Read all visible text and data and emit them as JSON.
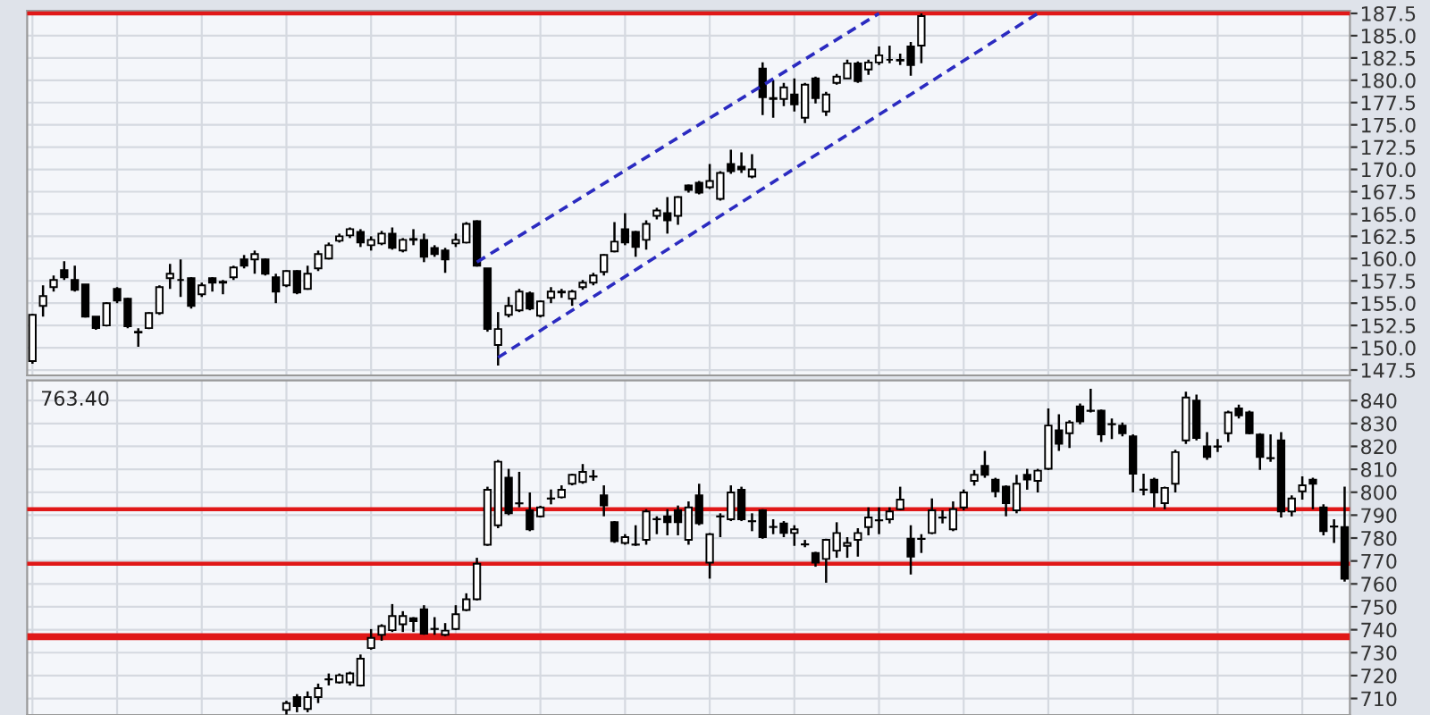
{
  "chart_data": [
    {
      "type": "candlestick",
      "categories": [
        null,
        null,
        null,
        null,
        null,
        null,
        null,
        null,
        null,
        null,
        null,
        null,
        null,
        null,
        null,
        null,
        null,
        null,
        null,
        null,
        null,
        null,
        null,
        null,
        null,
        null,
        null,
        null,
        null,
        null,
        null,
        null,
        null,
        null,
        null,
        null,
        null,
        null,
        null,
        null,
        null,
        null,
        null,
        null,
        null,
        null,
        null,
        null,
        null,
        null,
        null,
        null,
        null,
        null,
        null,
        null,
        null,
        null,
        null,
        null,
        null,
        null,
        null,
        null,
        null,
        null,
        null,
        null,
        null,
        null,
        null,
        null,
        null,
        null,
        null,
        null,
        null,
        null,
        null,
        null,
        null,
        null,
        null,
        null,
        null,
        null,
        null,
        null,
        null,
        null,
        null,
        null,
        null,
        null,
        null,
        null,
        null,
        null,
        null,
        null,
        null,
        null,
        null,
        null,
        null,
        null,
        null,
        null,
        null,
        null,
        null,
        null,
        null,
        null,
        null,
        null,
        null,
        null,
        null,
        null,
        null,
        null,
        null,
        null,
        null
      ],
      "ohlc": [
        [
          148.5,
          153.8,
          148.2,
          153.7
        ],
        [
          154.7,
          157.0,
          153.5,
          155.8
        ],
        [
          156.8,
          158.1,
          156.3,
          157.6
        ],
        [
          158.7,
          159.7,
          157.6,
          157.9
        ],
        [
          157.6,
          159.2,
          156.3,
          156.5
        ],
        [
          157.1,
          157.1,
          153.4,
          153.5
        ],
        [
          153.5,
          153.5,
          152.0,
          152.2
        ],
        [
          152.5,
          155.1,
          152.4,
          155.0
        ],
        [
          156.6,
          156.8,
          155.0,
          155.3
        ],
        [
          155.5,
          155.6,
          152.2,
          152.4
        ],
        [
          151.8,
          152.2,
          150.1,
          151.7
        ],
        [
          152.2,
          154.0,
          152.1,
          153.9
        ],
        [
          153.9,
          157.0,
          153.7,
          156.8
        ],
        [
          157.8,
          159.4,
          156.6,
          158.3
        ],
        [
          157.6,
          159.9,
          155.7,
          157.6
        ],
        [
          157.8,
          157.9,
          154.4,
          154.7
        ],
        [
          156.0,
          157.3,
          155.7,
          157.0
        ],
        [
          157.8,
          157.9,
          156.3,
          157.3
        ],
        [
          157.3,
          157.6,
          156.0,
          157.4
        ],
        [
          157.9,
          159.2,
          157.6,
          159.0
        ],
        [
          159.9,
          160.4,
          158.9,
          159.2
        ],
        [
          159.9,
          160.9,
          158.3,
          160.5
        ],
        [
          159.9,
          160.0,
          158.1,
          158.3
        ],
        [
          157.9,
          158.3,
          155.0,
          156.3
        ],
        [
          157.0,
          158.7,
          156.8,
          158.6
        ],
        [
          158.6,
          158.7,
          156.0,
          156.2
        ],
        [
          156.6,
          159.2,
          156.5,
          158.3
        ],
        [
          158.9,
          160.9,
          158.6,
          160.5
        ],
        [
          160.0,
          161.8,
          159.9,
          161.5
        ],
        [
          162.0,
          162.8,
          161.8,
          162.5
        ],
        [
          162.6,
          163.5,
          162.3,
          163.3
        ],
        [
          163.0,
          163.3,
          161.3,
          161.8
        ],
        [
          161.5,
          162.5,
          160.9,
          162.1
        ],
        [
          161.7,
          163.1,
          161.5,
          162.8
        ],
        [
          162.8,
          163.5,
          161.0,
          161.2
        ],
        [
          160.9,
          162.3,
          160.7,
          162.1
        ],
        [
          162.2,
          163.3,
          161.5,
          162.1
        ],
        [
          162.1,
          162.8,
          159.6,
          160.2
        ],
        [
          161.2,
          161.5,
          160.2,
          160.5
        ],
        [
          160.9,
          161.2,
          158.4,
          159.9
        ],
        [
          161.7,
          162.8,
          161.3,
          162.1
        ],
        [
          161.8,
          164.1,
          161.7,
          163.9
        ],
        [
          164.2,
          164.3,
          159.1,
          159.2
        ],
        [
          158.9,
          158.9,
          151.8,
          152.1
        ],
        [
          150.3,
          154.0,
          148.0,
          152.1
        ],
        [
          153.7,
          155.7,
          153.4,
          154.7
        ],
        [
          154.2,
          156.6,
          154.0,
          156.3
        ],
        [
          156.1,
          156.3,
          154.2,
          154.4
        ],
        [
          153.6,
          155.3,
          153.4,
          155.2
        ],
        [
          155.6,
          156.8,
          155.0,
          156.3
        ],
        [
          156.2,
          156.6,
          155.6,
          156.3
        ],
        [
          155.5,
          156.5,
          154.7,
          156.3
        ],
        [
          156.8,
          157.6,
          156.5,
          157.3
        ],
        [
          157.3,
          158.4,
          157.0,
          158.1
        ],
        [
          158.5,
          160.5,
          158.1,
          160.4
        ],
        [
          160.8,
          164.1,
          160.7,
          161.9
        ],
        [
          163.3,
          165.1,
          161.5,
          161.8
        ],
        [
          163.0,
          163.1,
          160.2,
          161.3
        ],
        [
          162.1,
          164.3,
          161.0,
          163.9
        ],
        [
          164.8,
          165.7,
          164.4,
          165.4
        ],
        [
          165.1,
          166.9,
          162.8,
          164.3
        ],
        [
          164.8,
          167.0,
          163.8,
          166.9
        ],
        [
          168.2,
          168.3,
          167.4,
          167.7
        ],
        [
          168.5,
          168.7,
          167.2,
          167.4
        ],
        [
          168.0,
          170.6,
          167.8,
          168.7
        ],
        [
          166.7,
          169.8,
          166.5,
          169.6
        ],
        [
          170.6,
          172.2,
          169.5,
          169.8
        ],
        [
          170.3,
          171.9,
          169.6,
          170.0
        ],
        [
          169.2,
          171.7,
          169.0,
          170.0
        ],
        [
          181.3,
          182.0,
          176.1,
          178.1
        ],
        [
          178.0,
          180.0,
          175.8,
          177.9
        ],
        [
          177.9,
          179.7,
          177.1,
          179.2
        ],
        [
          178.4,
          180.2,
          176.5,
          177.3
        ],
        [
          175.8,
          179.7,
          175.2,
          179.5
        ],
        [
          180.2,
          180.4,
          177.4,
          178.0
        ],
        [
          176.5,
          178.7,
          176.0,
          178.4
        ],
        [
          179.7,
          180.7,
          179.5,
          180.4
        ],
        [
          180.2,
          182.3,
          180.2,
          181.9
        ],
        [
          181.9,
          182.1,
          179.7,
          179.9
        ],
        [
          181.2,
          182.3,
          180.6,
          182.0
        ],
        [
          182.0,
          183.8,
          181.7,
          182.8
        ],
        [
          182.3,
          183.9,
          181.9,
          182.3
        ],
        [
          182.3,
          183.0,
          181.7,
          182.2
        ],
        [
          183.8,
          184.3,
          180.5,
          181.7
        ],
        [
          183.9,
          187.5,
          181.9,
          187.2
        ],
        null,
        null,
        null,
        null,
        null,
        null,
        null,
        null,
        null,
        null,
        null,
        null,
        null,
        null,
        null,
        null,
        null,
        null,
        null,
        null,
        null,
        null,
        null,
        null,
        null,
        null,
        null,
        null,
        null,
        null,
        null,
        null,
        null,
        null,
        null,
        null,
        null,
        null,
        null,
        null
      ],
      "series": [
        {
          "type": "line",
          "values": [
            null,
            null,
            null,
            null,
            null,
            null,
            null,
            null,
            null,
            null,
            null,
            null,
            null,
            null,
            null,
            null,
            null,
            null,
            null,
            null,
            null,
            null,
            null,
            null,
            null,
            null,
            null,
            null,
            null,
            null,
            null,
            null,
            null,
            null,
            null,
            null,
            null,
            null,
            null,
            null,
            null,
            null,
            159.6,
            null,
            null,
            null,
            null,
            null,
            null,
            null,
            null,
            null,
            null,
            null,
            null,
            null,
            null,
            null,
            null,
            null,
            null,
            null,
            null,
            null,
            null,
            null,
            null,
            null,
            null,
            null,
            null,
            null,
            null,
            null,
            null,
            null,
            null,
            null,
            null,
            null,
            187.5,
            null,
            null,
            null,
            null,
            null,
            null,
            null,
            null,
            null,
            null,
            null,
            null,
            null,
            null,
            null,
            null,
            null,
            null,
            null,
            null,
            null,
            null,
            null,
            null,
            null,
            null,
            null,
            null,
            null,
            null,
            null,
            null,
            null,
            null,
            null,
            null,
            null,
            null,
            null,
            null,
            null,
            null,
            null,
            null
          ],
          "color": "#2b2bc0",
          "line_style": "dashed"
        },
        {
          "type": "line",
          "values": [
            null,
            null,
            null,
            null,
            null,
            null,
            null,
            null,
            null,
            null,
            null,
            null,
            null,
            null,
            null,
            null,
            null,
            null,
            null,
            null,
            null,
            null,
            null,
            null,
            null,
            null,
            null,
            null,
            null,
            null,
            null,
            null,
            null,
            null,
            null,
            null,
            null,
            null,
            null,
            null,
            null,
            null,
            null,
            null,
            148.9,
            null,
            null,
            null,
            null,
            null,
            null,
            null,
            null,
            null,
            null,
            null,
            null,
            null,
            null,
            null,
            null,
            null,
            null,
            null,
            null,
            null,
            null,
            null,
            null,
            null,
            null,
            null,
            null,
            null,
            null,
            null,
            null,
            null,
            null,
            null,
            null,
            null,
            null,
            null,
            null,
            null,
            null,
            null,
            null,
            null,
            null,
            null,
            null,
            null,
            null,
            187.5,
            null,
            null,
            null,
            null,
            null,
            null,
            null,
            null,
            null,
            null,
            null,
            null,
            null,
            null,
            null,
            null,
            null,
            null,
            null,
            null,
            null,
            null,
            null,
            null,
            null,
            null,
            null,
            null,
            null
          ],
          "color": "#2b2bc0",
          "line_style": "dashed"
        }
      ],
      "ylim": [
        146.9,
        187.8
      ],
      "yticks": [
        147.5,
        {
          "value": 150,
          "label": "150.0"
        },
        152.5,
        {
          "value": 155,
          "label": "155.0"
        },
        157.5,
        {
          "value": 160,
          "label": "160.0"
        },
        162.5,
        {
          "value": 165,
          "label": "165.0"
        },
        167.5,
        {
          "value": 170,
          "label": "170.0"
        },
        172.5,
        {
          "value": 175,
          "label": "175.0"
        },
        177.5,
        {
          "value": 180,
          "label": "180.0"
        },
        182.5,
        {
          "value": 185,
          "label": "185.0"
        },
        187.5
      ],
      "ref_lines": [
        {
          "axis": "y",
          "value": 187.5,
          "color": "#e01818"
        }
      ],
      "grid": true,
      "tick_labels": "y"
    },
    {
      "type": "candlestick",
      "categories": [
        null,
        null,
        null,
        null,
        null,
        null,
        null,
        null,
        null,
        null,
        null,
        null,
        null,
        null,
        null,
        null,
        null,
        null,
        null,
        null,
        null,
        null,
        null,
        null,
        null,
        null,
        null,
        null,
        null,
        null,
        null,
        null,
        null,
        null,
        null,
        null,
        null,
        null,
        null,
        null,
        null,
        null,
        null,
        null,
        null,
        null,
        null,
        null,
        null,
        null,
        null,
        null,
        null,
        null,
        null,
        null,
        null,
        null,
        null,
        null,
        null,
        null,
        null,
        null,
        null,
        null,
        null,
        null,
        null,
        null,
        null,
        null,
        null,
        null,
        null,
        null,
        null,
        null,
        null,
        null,
        null,
        null,
        null,
        null,
        null,
        null,
        null,
        null,
        null,
        null,
        null,
        null,
        null,
        null,
        null,
        null,
        null,
        null,
        null,
        null,
        null,
        null,
        null,
        null,
        null,
        null,
        null,
        null,
        null,
        null,
        null,
        null,
        null,
        null,
        null,
        null,
        null,
        null,
        null,
        null,
        null,
        null,
        null,
        null,
        null
      ],
      "ohlc": [
        null,
        null,
        null,
        null,
        null,
        null,
        null,
        null,
        null,
        null,
        null,
        null,
        null,
        null,
        null,
        null,
        null,
        null,
        null,
        null,
        null,
        null,
        null,
        null,
        [
          705.0,
          709.0,
          703.0,
          708.0
        ],
        [
          710.6,
          711.9,
          704.0,
          706.7
        ],
        [
          705.4,
          713.1,
          704.0,
          710.6
        ],
        [
          710.6,
          716.5,
          708.0,
          714.5
        ],
        [
          718.4,
          720.9,
          715.7,
          718.3
        ],
        [
          717.0,
          720.9,
          716.5,
          720.1
        ],
        [
          717.0,
          721.7,
          715.7,
          720.9
        ],
        [
          715.7,
          729.2,
          715.2,
          727.4
        ],
        [
          732.0,
          740.3,
          731.3,
          736.4
        ],
        [
          737.8,
          742.4,
          735.2,
          741.6
        ],
        [
          739.8,
          751.2,
          739.0,
          746.0
        ],
        [
          742.4,
          748.1,
          739.0,
          746.0
        ],
        [
          745.0,
          745.5,
          739.0,
          743.7
        ],
        [
          748.9,
          750.7,
          737.8,
          738.3
        ],
        [
          740.3,
          745.5,
          737.8,
          740.4
        ],
        [
          737.8,
          742.9,
          737.2,
          739.6
        ],
        [
          740.3,
          750.7,
          739.8,
          746.8
        ],
        [
          748.6,
          755.9,
          748.1,
          753.3
        ],
        [
          753.3,
          771.4,
          752.8,
          768.8
        ],
        [
          777.1,
          802.4,
          776.6,
          801.1
        ],
        [
          785.6,
          814.1,
          784.3,
          813.3
        ],
        [
          806.3,
          810.2,
          790.0,
          790.8
        ],
        [
          795.2,
          808.9,
          793.4,
          795.1
        ],
        [
          792.1,
          799.9,
          783.0,
          783.8
        ],
        [
          789.5,
          794.1,
          789.0,
          793.4
        ],
        [
          797.3,
          801.2,
          794.7,
          797.2
        ],
        [
          797.8,
          803.0,
          797.3,
          801.1
        ],
        [
          803.7,
          808.1,
          803.0,
          807.6
        ],
        [
          804.5,
          812.3,
          803.7,
          808.9
        ],
        [
          806.9,
          809.7,
          805.0,
          806.8
        ],
        [
          798.6,
          803.0,
          789.5,
          794.2
        ],
        [
          786.9,
          787.4,
          777.9,
          778.6
        ],
        [
          777.9,
          781.7,
          777.1,
          780.4
        ],
        [
          777.1,
          785.6,
          776.6,
          777.2
        ],
        [
          779.2,
          792.6,
          777.1,
          791.6
        ],
        [
          788.2,
          789.5,
          781.7,
          788.3
        ],
        [
          789.5,
          792.6,
          781.2,
          786.9
        ],
        [
          792.1,
          794.2,
          781.2,
          786.9
        ],
        [
          779.2,
          796.0,
          777.1,
          793.4
        ],
        [
          798.6,
          803.7,
          785.6,
          786.4
        ],
        [
          769.3,
          782.2,
          762.3,
          781.7
        ],
        [
          789.5,
          790.8,
          780.4,
          789.4
        ],
        [
          788.2,
          803.0,
          787.4,
          799.9
        ],
        [
          801.1,
          802.4,
          787.4,
          788.2
        ],
        [
          787.4,
          790.8,
          783.0,
          787.3
        ],
        [
          792.1,
          792.6,
          779.7,
          780.4
        ],
        [
          784.9,
          788.2,
          781.7,
          784.8
        ],
        [
          786.4,
          787.4,
          780.4,
          782.2
        ],
        [
          782.2,
          785.6,
          776.6,
          783.8
        ],
        [
          777.3,
          779.2,
          776.0,
          777.2
        ],
        [
          773.5,
          774.0,
          767.5,
          769.3
        ],
        [
          770.9,
          779.7,
          760.5,
          779.2
        ],
        [
          774.5,
          786.9,
          771.4,
          782.2
        ],
        [
          776.6,
          780.4,
          771.4,
          777.9
        ],
        [
          779.2,
          784.3,
          771.9,
          782.2
        ],
        [
          784.8,
          793.4,
          781.2,
          789.0
        ],
        [
          787.7,
          793.4,
          781.7,
          787.8
        ],
        [
          788.2,
          793.4,
          786.4,
          791.6
        ],
        [
          792.6,
          802.4,
          792.1,
          796.8
        ],
        [
          779.7,
          785.6,
          764.1,
          771.9
        ],
        [
          779.7,
          781.7,
          773.5,
          779.6
        ],
        [
          782.2,
          797.3,
          781.7,
          792.1
        ],
        [
          789.0,
          792.1,
          786.4,
          788.9
        ],
        [
          783.8,
          796.0,
          783.0,
          792.6
        ],
        [
          793.4,
          801.2,
          792.1,
          799.9
        ],
        [
          805.0,
          809.7,
          802.9,
          807.6
        ],
        [
          811.5,
          818.0,
          806.3,
          807.6
        ],
        [
          805.5,
          806.3,
          797.8,
          800.4
        ],
        [
          802.4,
          803.0,
          789.5,
          795.2
        ],
        [
          792.1,
          807.6,
          790.8,
          803.7
        ],
        [
          807.6,
          810.2,
          801.1,
          805.5
        ],
        [
          805.0,
          810.2,
          799.9,
          809.4
        ],
        [
          810.2,
          836.6,
          809.7,
          829.1
        ],
        [
          827.0,
          834.0,
          818.0,
          821.1
        ],
        [
          825.7,
          831.4,
          819.3,
          830.4
        ],
        [
          837.4,
          838.7,
          829.6,
          830.9
        ],
        [
          835.6,
          845.1,
          834.8,
          835.5
        ],
        [
          835.6,
          836.1,
          821.9,
          825.2
        ],
        [
          829.6,
          832.2,
          823.2,
          829.7
        ],
        [
          829.1,
          830.4,
          824.4,
          825.7
        ],
        [
          824.4,
          825.2,
          799.9,
          808.1
        ],
        [
          801.1,
          808.1,
          798.6,
          801.2
        ],
        [
          805.5,
          806.3,
          793.4,
          799.9
        ],
        [
          795.2,
          802.4,
          792.6,
          801.9
        ],
        [
          803.7,
          818.5,
          799.9,
          817.5
        ],
        [
          822.6,
          843.9,
          821.1,
          841.3
        ],
        [
          840.0,
          842.6,
          822.6,
          823.7
        ],
        [
          820.0,
          826.2,
          814.1,
          815.4
        ],
        [
          820.0,
          823.2,
          817.5,
          819.9
        ],
        [
          825.7,
          835.6,
          821.9,
          834.8
        ],
        [
          836.6,
          838.2,
          832.2,
          833.5
        ],
        [
          834.8,
          835.6,
          825.2,
          825.7
        ],
        [
          825.2,
          825.7,
          809.7,
          815.4
        ],
        [
          814.9,
          825.2,
          813.3,
          814.8
        ],
        [
          822.6,
          826.2,
          789.0,
          791.6
        ],
        [
          791.6,
          798.6,
          789.5,
          797.3
        ],
        [
          800.4,
          806.9,
          796.8,
          803.0
        ],
        [
          805.5,
          806.3,
          792.6,
          803.7
        ],
        [
          793.4,
          794.7,
          781.2,
          783.0
        ],
        [
          785.1,
          788.2,
          777.9,
          785.0
        ],
        [
          784.8,
          802.4,
          761.0,
          762.3
        ]
      ],
      "ylim": [
        702.8,
        848.8
      ],
      "yticks": [
        710,
        720,
        730,
        740,
        750,
        760,
        770,
        780,
        790,
        800,
        810,
        820,
        830,
        840
      ],
      "ref_lines": [
        {
          "axis": "y",
          "value": 792.6,
          "color": "#e01818"
        },
        {
          "axis": "y",
          "value": 768.8,
          "color": "#e01818"
        }
      ],
      "bands": [
        {
          "axis": "y",
          "from": 735.5,
          "to": 738.5,
          "color": "#e01818"
        }
      ],
      "annotations": [
        "763.40"
      ],
      "grid": true,
      "tick_labels": "y"
    }
  ]
}
